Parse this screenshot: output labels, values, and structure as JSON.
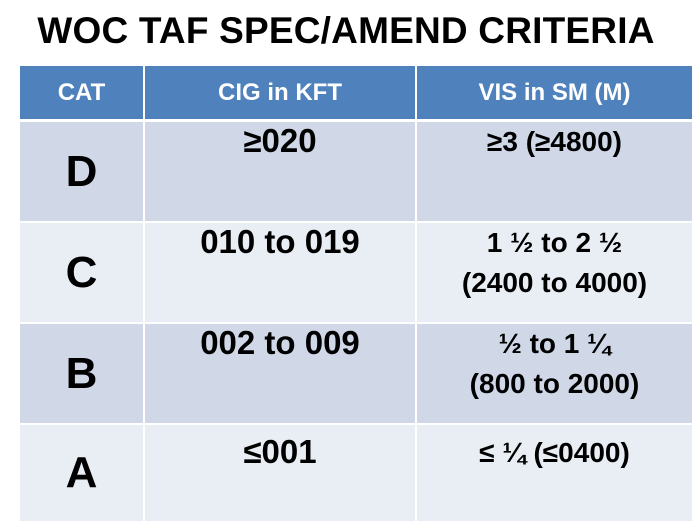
{
  "title": "WOC TAF SPEC/AMEND CRITERIA",
  "table": {
    "headers": [
      "CAT",
      "CIG in KFT",
      "VIS in SM (M)"
    ],
    "rows": [
      {
        "cat": "D",
        "cig": "≥020",
        "vis": [
          "≥3  (≥4800)"
        ]
      },
      {
        "cat": "C",
        "cig": "010 to 019",
        "vis": [
          "1 ½ to 2 ½",
          "(2400 to 4000)"
        ]
      },
      {
        "cat": "B",
        "cig": "002 to 009",
        "vis": [
          "½ to 1 ¼",
          "(800 to 2000)"
        ]
      },
      {
        "cat": "A",
        "cig": "≤001",
        "vis": [
          "≤  ¼  (≤0400)"
        ]
      }
    ]
  },
  "colors": {
    "header_bg": "#4f81bd",
    "row_dark": "#d0d8e8",
    "row_light": "#e9edf4"
  }
}
